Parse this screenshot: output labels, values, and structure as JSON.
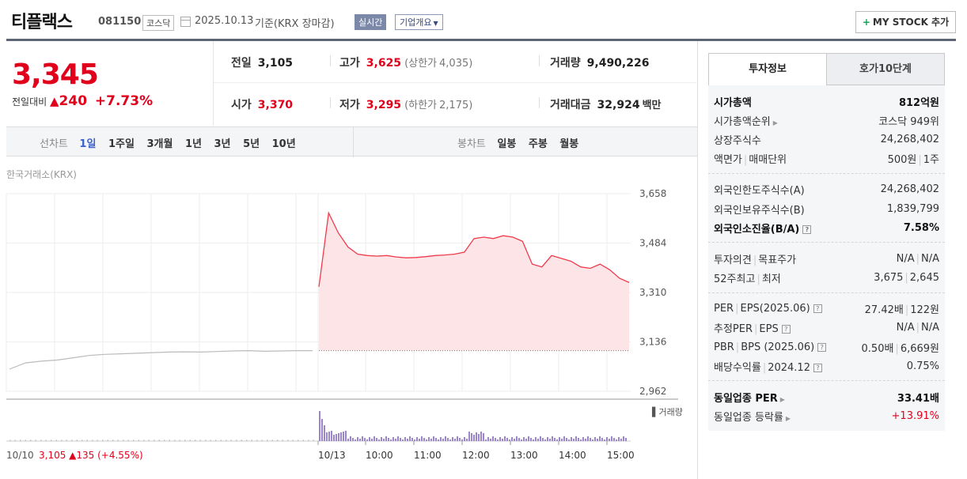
{
  "header": {
    "name": "티플랙스",
    "code": "081150",
    "market": "코스닥",
    "date": "2025.10.13",
    "basis": "기준(KRX 장마감)",
    "realtime": "실시간",
    "overview": "기업개요",
    "mystock": "MY STOCK 추가"
  },
  "price": {
    "current": "3,345",
    "prev_label": "전일대비",
    "change": "240",
    "change_pct": "+7.73%"
  },
  "stats": {
    "prev_label": "전일",
    "prev": "3,105",
    "high_label": "고가",
    "high": "3,625",
    "upper_label": "(상한가",
    "upper": "4,035)",
    "volume_label": "거래량",
    "volume": "9,490,226",
    "open_label": "시가",
    "open": "3,370",
    "low_label": "저가",
    "low": "3,295",
    "lower_label": "(하한가",
    "lower": "2,175)",
    "amount_label": "거래대금",
    "amount": "32,924",
    "amount_unit": "백만"
  },
  "toolbar": {
    "line_label": "선차트",
    "line_periods": [
      "1일",
      "1주일",
      "3개월",
      "1년",
      "3년",
      "5년",
      "10년"
    ],
    "candle_label": "봉차트",
    "candle_periods": [
      "일봉",
      "주봉",
      "월봉"
    ]
  },
  "chart_data": {
    "type": "line",
    "source": "한국거래소(KRX)",
    "y_ticks": [
      "3,658",
      "3,484",
      "3,310",
      "3,136",
      "2,962"
    ],
    "ylim": [
      2962,
      3658
    ],
    "prev_close": 3105,
    "prev_day_series": [
      3040,
      3062,
      3068,
      3072,
      3080,
      3088,
      3092,
      3094,
      3096,
      3098,
      3100,
      3101,
      3100,
      3102,
      3104,
      3105,
      3103,
      3104,
      3105,
      3105
    ],
    "today_series": [
      3330,
      3590,
      3520,
      3470,
      3445,
      3440,
      3438,
      3440,
      3435,
      3432,
      3433,
      3436,
      3440,
      3442,
      3445,
      3452,
      3500,
      3505,
      3500,
      3510,
      3505,
      3490,
      3410,
      3400,
      3440,
      3430,
      3420,
      3400,
      3395,
      3410,
      3390,
      3360,
      3345
    ],
    "volume_label": "거래량",
    "x_labels": [
      "10/13",
      "10:00",
      "11:00",
      "12:00",
      "13:00",
      "14:00",
      "15:00"
    ],
    "prev_day": {
      "date": "10/10",
      "close": "3,105",
      "change": "135",
      "pct": "(+4.55%)"
    }
  },
  "tabs": [
    "투자정보",
    "호가10단계"
  ],
  "info": {
    "s1": [
      {
        "k": "시가총액",
        "v": "812억원"
      },
      {
        "k": "시가총액순위",
        "v": "코스닥 949위"
      },
      {
        "k": "상장주식수",
        "v": "24,268,402"
      },
      {
        "k1": "액면가",
        "k2": "매매단위",
        "v1": "500원",
        "v2": "1주"
      }
    ],
    "s2": [
      {
        "k": "외국인한도주식수(A)",
        "v": "24,268,402"
      },
      {
        "k": "외국인보유주식수(B)",
        "v": "1,839,799"
      },
      {
        "k": "외국인소진율(B/A)",
        "v": "7.58%"
      }
    ],
    "s3": [
      {
        "k1": "투자의견",
        "k2": "목표주가",
        "v1": "N/A",
        "v2": "N/A"
      },
      {
        "k1": "52주최고",
        "k2": "최저",
        "v1": "3,675",
        "v2": "2,645"
      }
    ],
    "s4": [
      {
        "k1": "PER",
        "k2": "EPS(2025.06)",
        "v1": "27.42배",
        "v2": "122원"
      },
      {
        "k1": "추정PER",
        "k2": "EPS",
        "v1": "N/A",
        "v2": "N/A"
      },
      {
        "k1": "PBR",
        "k2": "BPS (2025.06)",
        "v1": "0.50배",
        "v2": "6,669원"
      },
      {
        "k": "배당수익률",
        "k2": "2024.12",
        "v": "0.75%"
      }
    ],
    "s5": [
      {
        "k": "동일업종 PER",
        "v": "33.41배"
      },
      {
        "k": "동일업종 등락률",
        "v": "+13.91%"
      }
    ]
  },
  "colors": {
    "up": "#e0001b",
    "accent": "#3b62c4",
    "volume": "#9b86c9"
  }
}
